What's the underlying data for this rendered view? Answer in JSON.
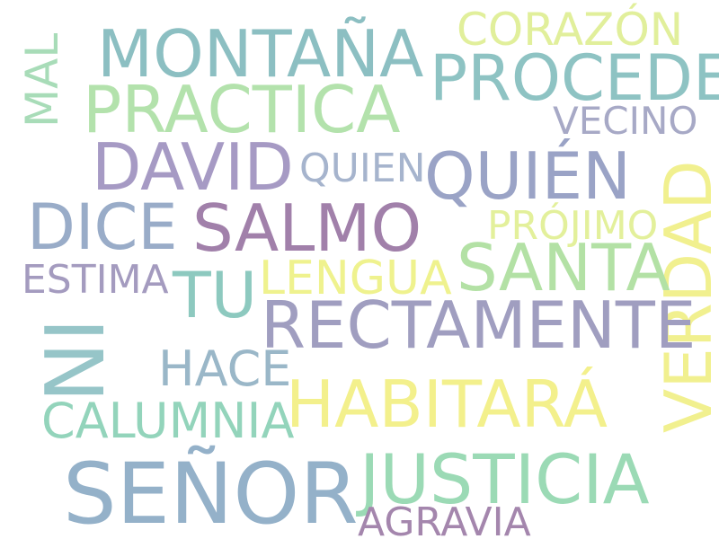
{
  "words": [
    {
      "text": "MONTAÑA",
      "color": "#8cbfc2"
    },
    {
      "text": "CORAZÓN",
      "color": "#e1ef9b"
    },
    {
      "text": "PROCEDE",
      "color": "#8ec3c3"
    },
    {
      "text": "MAL",
      "color": "#a8dcb8"
    },
    {
      "text": "PRACTICA",
      "color": "#b3e2ac"
    },
    {
      "text": "VECINO",
      "color": "#a7a9c6"
    },
    {
      "text": "DAVID",
      "color": "#a69ac4"
    },
    {
      "text": "QUIEN",
      "color": "#a6b4cd"
    },
    {
      "text": "QUIÉN",
      "color": "#9aa3c6"
    },
    {
      "text": "DICE",
      "color": "#99acc8"
    },
    {
      "text": "SALMO",
      "color": "#a180aa"
    },
    {
      "text": "PRÓJIMO",
      "color": "#e3f09b"
    },
    {
      "text": "VERDAD",
      "color": "#f1f08f"
    },
    {
      "text": "SANTA",
      "color": "#b3e1a5"
    },
    {
      "text": "ESTIMA",
      "color": "#a49bbf"
    },
    {
      "text": "TU",
      "color": "#8dc9bf"
    },
    {
      "text": "LENGUA",
      "color": "#eff28e"
    },
    {
      "text": "NI",
      "color": "#96c5c8"
    },
    {
      "text": "RECTAMENTE",
      "color": "#a09ec0"
    },
    {
      "text": "HACE",
      "color": "#9ab7c8"
    },
    {
      "text": "HABITARÁ",
      "color": "#f3f08c"
    },
    {
      "text": "CALUMNIA",
      "color": "#93d4bb"
    },
    {
      "text": "SEÑOR",
      "color": "#94b1c9"
    },
    {
      "text": "JUSTICIA",
      "color": "#9bdab5"
    },
    {
      "text": "AGRAVIA",
      "color": "#a486ad"
    }
  ]
}
